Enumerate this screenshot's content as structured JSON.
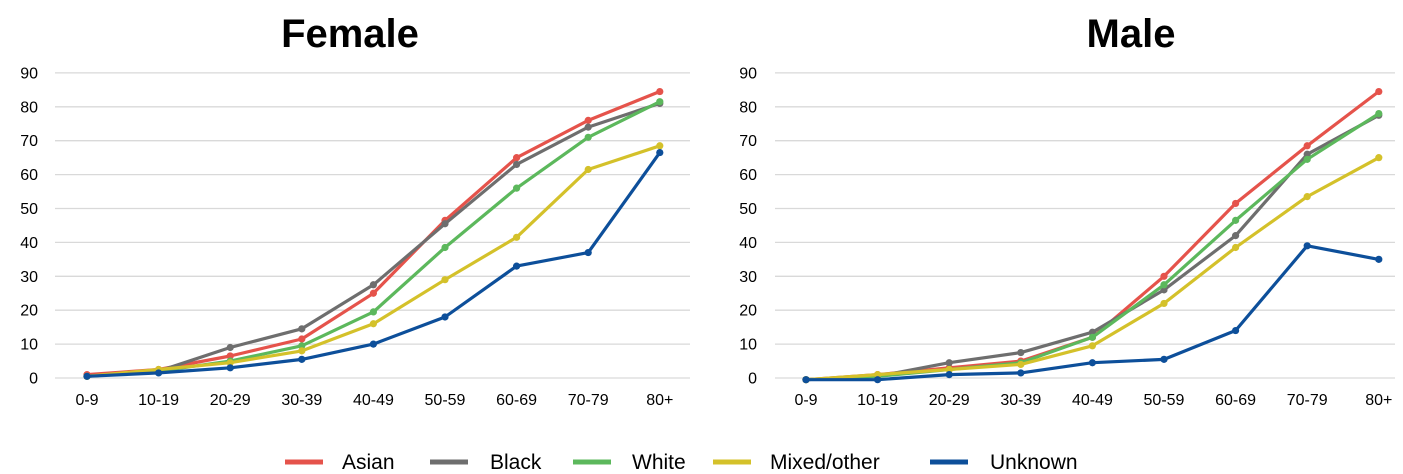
{
  "chart_data": [
    {
      "type": "line",
      "title": "Female",
      "categories": [
        "0-9",
        "10-19",
        "20-29",
        "30-39",
        "40-49",
        "50-59",
        "60-69",
        "70-79",
        "80+"
      ],
      "ylim": [
        0,
        90
      ],
      "yticks": [
        0,
        10,
        20,
        30,
        40,
        50,
        60,
        70,
        80,
        90
      ],
      "grid": true,
      "series": [
        {
          "name": "Asian",
          "color": "#e5534b",
          "values": [
            1.0,
            2.5,
            6.5,
            11.5,
            25,
            46.5,
            65,
            76,
            84.5
          ]
        },
        {
          "name": "Black",
          "color": "#6e6e6e",
          "values": [
            0.5,
            2,
            9,
            14.5,
            27.5,
            45.5,
            63,
            74,
            81
          ]
        },
        {
          "name": "White",
          "color": "#5cb85c",
          "values": [
            0.5,
            2,
            5,
            9.5,
            19.5,
            38.5,
            56,
            71,
            81.5
          ]
        },
        {
          "name": "Mixed/other",
          "color": "#d4c12a",
          "values": [
            0.5,
            2.5,
            4.5,
            8,
            16,
            29,
            41.5,
            61.5,
            68.5
          ]
        },
        {
          "name": "Unknown",
          "color": "#0d4f9a",
          "values": [
            0.5,
            1.5,
            3,
            5.5,
            10,
            18,
            33,
            37,
            66.5
          ]
        }
      ]
    },
    {
      "type": "line",
      "title": "Male",
      "categories": [
        "0-9",
        "10-19",
        "20-29",
        "30-39",
        "40-49",
        "50-59",
        "60-69",
        "70-79",
        "80+"
      ],
      "ylim": [
        0,
        90
      ],
      "yticks": [
        0,
        10,
        20,
        30,
        40,
        50,
        60,
        70,
        80,
        90
      ],
      "grid": true,
      "series": [
        {
          "name": "Asian",
          "color": "#e5534b",
          "values": [
            -0.5,
            1,
            3,
            5,
            12,
            30,
            51.5,
            68.5,
            84.5
          ]
        },
        {
          "name": "Black",
          "color": "#6e6e6e",
          "values": [
            -0.5,
            0.5,
            4.5,
            7.5,
            13.5,
            26,
            42,
            66,
            77.5
          ]
        },
        {
          "name": "White",
          "color": "#5cb85c",
          "values": [
            -0.5,
            0.5,
            2.5,
            4.5,
            12,
            27.5,
            46.5,
            64.5,
            78
          ]
        },
        {
          "name": "Mixed/other",
          "color": "#d4c12a",
          "values": [
            -0.5,
            1,
            2.5,
            4,
            9.5,
            22,
            38.5,
            53.5,
            65
          ]
        },
        {
          "name": "Unknown",
          "color": "#0d4f9a",
          "values": [
            -0.5,
            -0.5,
            1,
            1.5,
            4.5,
            5.5,
            14,
            39,
            35
          ]
        }
      ]
    }
  ],
  "legend": {
    "placement": "bottom-center",
    "items": [
      {
        "label": "Asian",
        "color": "#e5534b"
      },
      {
        "label": "Black",
        "color": "#6e6e6e"
      },
      {
        "label": "White",
        "color": "#5cb85c"
      },
      {
        "label": "Mixed/other",
        "color": "#d4c12a"
      },
      {
        "label": "Unknown",
        "color": "#0d4f9a"
      }
    ]
  }
}
